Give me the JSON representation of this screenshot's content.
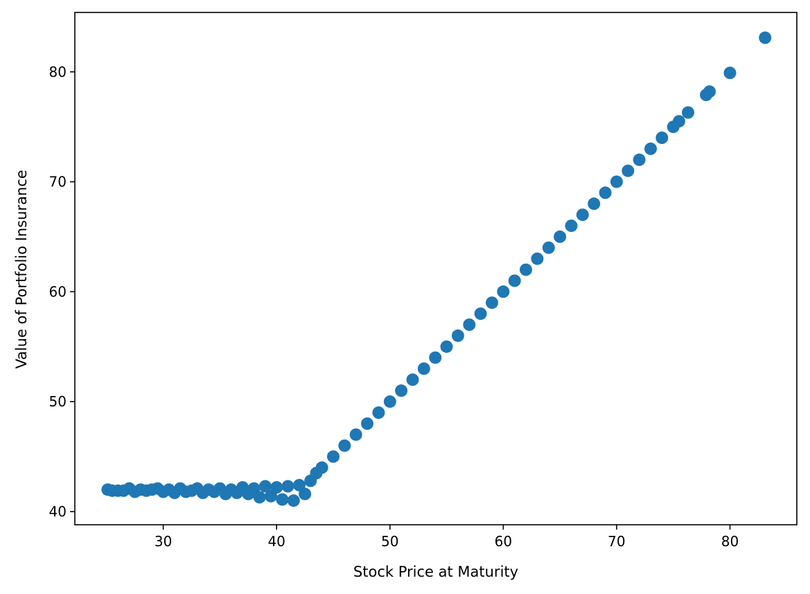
{
  "chart_data": {
    "type": "scatter",
    "title": "",
    "xlabel": "Stock Price at Maturity",
    "ylabel": "Value of Portfolio Insurance",
    "xlim": [
      22.2,
      85.9
    ],
    "ylim": [
      38.8,
      85.4
    ],
    "xticks": [
      30,
      40,
      50,
      60,
      70,
      80
    ],
    "yticks": [
      40,
      50,
      60,
      70,
      80
    ],
    "grid": false,
    "legend": "none",
    "series": [
      {
        "color": "#1f77b4",
        "points": [
          [
            25.1,
            42.0
          ],
          [
            25.5,
            41.9
          ],
          [
            26.0,
            41.9
          ],
          [
            26.5,
            41.9
          ],
          [
            27.0,
            42.1
          ],
          [
            27.5,
            41.8
          ],
          [
            28.0,
            42.0
          ],
          [
            28.5,
            41.9
          ],
          [
            29.0,
            42.0
          ],
          [
            29.5,
            42.1
          ],
          [
            30.0,
            41.8
          ],
          [
            30.5,
            42.0
          ],
          [
            31.0,
            41.7
          ],
          [
            31.5,
            42.1
          ],
          [
            32.0,
            41.8
          ],
          [
            32.5,
            41.9
          ],
          [
            33.0,
            42.1
          ],
          [
            33.5,
            41.7
          ],
          [
            34.0,
            42.0
          ],
          [
            34.5,
            41.8
          ],
          [
            35.0,
            42.1
          ],
          [
            35.5,
            41.6
          ],
          [
            36.0,
            42.0
          ],
          [
            36.5,
            41.7
          ],
          [
            37.0,
            42.2
          ],
          [
            37.5,
            41.6
          ],
          [
            38.0,
            42.1
          ],
          [
            38.5,
            41.3
          ],
          [
            39.0,
            42.3
          ],
          [
            39.5,
            41.4
          ],
          [
            40.0,
            42.2
          ],
          [
            40.5,
            41.1
          ],
          [
            41.0,
            42.3
          ],
          [
            41.5,
            41.0
          ],
          [
            42.0,
            42.4
          ],
          [
            42.5,
            41.6
          ],
          [
            43.0,
            42.8
          ],
          [
            43.5,
            43.5
          ],
          [
            44.0,
            44.0
          ],
          [
            45.0,
            45.0
          ],
          [
            46.0,
            46.0
          ],
          [
            47.0,
            47.0
          ],
          [
            48.0,
            48.0
          ],
          [
            49.0,
            49.0
          ],
          [
            50.0,
            50.0
          ],
          [
            51.0,
            51.0
          ],
          [
            52.0,
            52.0
          ],
          [
            53.0,
            53.0
          ],
          [
            54.0,
            54.0
          ],
          [
            55.0,
            55.0
          ],
          [
            56.0,
            56.0
          ],
          [
            57.0,
            57.0
          ],
          [
            58.0,
            58.0
          ],
          [
            59.0,
            59.0
          ],
          [
            60.0,
            60.0
          ],
          [
            61.0,
            61.0
          ],
          [
            62.0,
            62.0
          ],
          [
            63.0,
            63.0
          ],
          [
            64.0,
            64.0
          ],
          [
            65.0,
            65.0
          ],
          [
            66.0,
            66.0
          ],
          [
            67.0,
            67.0
          ],
          [
            68.0,
            68.0
          ],
          [
            69.0,
            69.0
          ],
          [
            70.0,
            70.0
          ],
          [
            71.0,
            71.0
          ],
          [
            72.0,
            72.0
          ],
          [
            73.0,
            73.0
          ],
          [
            74.0,
            74.0
          ],
          [
            75.0,
            75.0
          ],
          [
            75.5,
            75.5
          ],
          [
            76.3,
            76.3
          ],
          [
            77.9,
            77.9
          ],
          [
            78.2,
            78.2
          ],
          [
            80.0,
            79.9
          ],
          [
            83.1,
            83.1
          ]
        ]
      }
    ]
  }
}
